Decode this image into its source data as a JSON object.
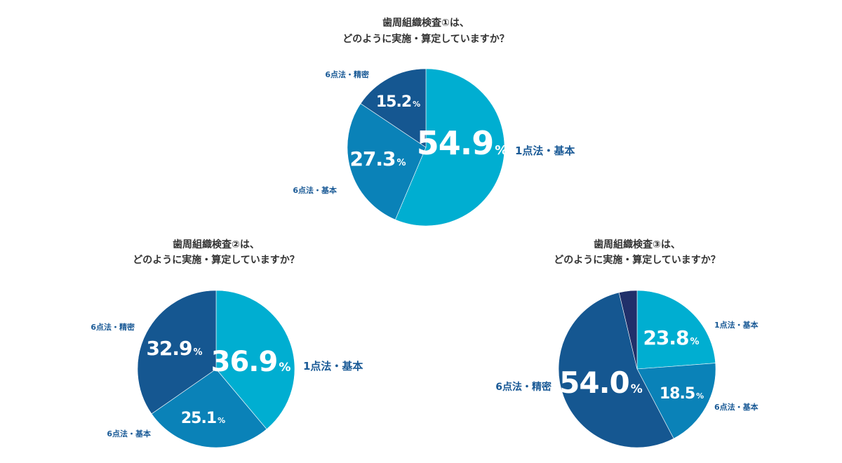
{
  "chart_data": [
    {
      "type": "pie",
      "title": [
        "歯周組織検査①は、",
        "どのように実施・算定していますか？"
      ],
      "slices": [
        {
          "label": "1点法・基本",
          "value": 54.9,
          "value_label": "54.9",
          "color": "#00aed1"
        },
        {
          "label": "6点法・基本",
          "value": 27.3,
          "value_label": "27.3",
          "color": "#0a82b8"
        },
        {
          "label": "6点法・精密",
          "value": 15.2,
          "value_label": "15.2",
          "color": "#155791"
        }
      ],
      "unit": "%"
    },
    {
      "type": "pie",
      "title": [
        "歯周組織検査②は、",
        "どのように実施・算定していますか？"
      ],
      "slices": [
        {
          "label": "1点法・基本",
          "value": 36.9,
          "value_label": "36.9",
          "color": "#00aed1"
        },
        {
          "label": "6点法・基本",
          "value": 25.1,
          "value_label": "25.1",
          "color": "#0a82b8"
        },
        {
          "label": "6点法・精密",
          "value": 32.9,
          "value_label": "32.9",
          "color": "#155791"
        }
      ],
      "unit": "%"
    },
    {
      "type": "pie",
      "title": [
        "歯周組織検査③は、",
        "どのように実施・算定していますか？"
      ],
      "slices": [
        {
          "label": "1点法・基本",
          "value": 23.8,
          "value_label": "23.8",
          "color": "#00aed1"
        },
        {
          "label": "6点法・基本",
          "value": 18.5,
          "value_label": "18.5",
          "color": "#0a82b8"
        },
        {
          "label": "6点法・精密",
          "value": 54.0,
          "value_label": "54.0",
          "color": "#155791"
        },
        {
          "label": "",
          "value": 3.7,
          "value_label": "",
          "color": "#21306a"
        }
      ],
      "unit": "%"
    }
  ]
}
